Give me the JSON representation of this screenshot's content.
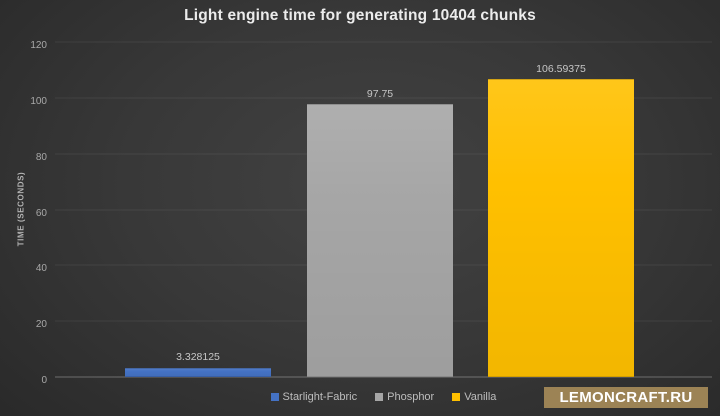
{
  "watermark": {
    "text": "LEMONCRAFT.RU",
    "bg_color": "#9c8355"
  },
  "chart_data": {
    "type": "bar",
    "title": "Light engine time for generating 10404 chunks",
    "xlabel": "",
    "ylabel": "TIME (SECONDS)",
    "ylim": [
      0,
      120
    ],
    "yticks": [
      0,
      20,
      40,
      60,
      80,
      100,
      120
    ],
    "grid": true,
    "legend_position": "bottom",
    "categories": [
      "Starlight-Fabric",
      "Phosphor",
      "Vanilla"
    ],
    "values": [
      3.328125,
      97.75,
      106.59375
    ],
    "value_labels": [
      "3.328125",
      "97.75",
      "106.59375"
    ],
    "colors": [
      "#4472c4",
      "#a6a6a6",
      "#ffc000"
    ],
    "background": "#333333",
    "title_color": "#ececec",
    "tick_color": "#a8a8a8",
    "label_color": "#c6c6c6"
  }
}
